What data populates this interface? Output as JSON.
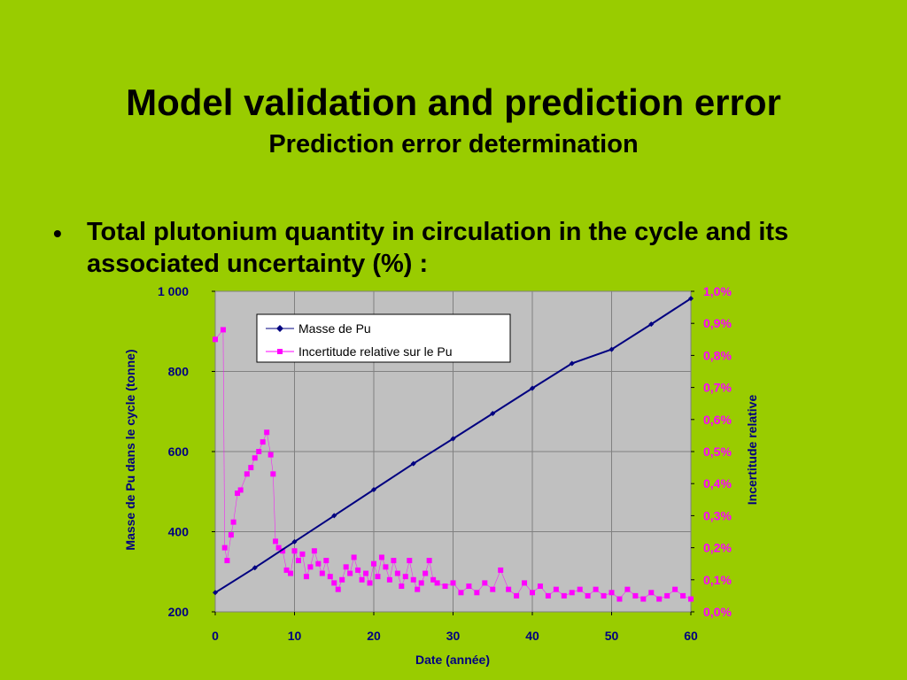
{
  "slide": {
    "title": "Model validation and prediction error",
    "subtitle": "Prediction error determination",
    "bullet_symbol": "•",
    "bullet": "Total plutonium quantity in circulation in the cycle and its associated  uncertainty (%) :"
  },
  "colors": {
    "background": "#99cc00",
    "plot_area": "#c0c0c0",
    "series_mass": "#000080",
    "series_uncertainty": "#ff00ff",
    "axis_left_text": "#000080",
    "axis_right_text": "#ff00ff"
  },
  "chart_data": {
    "type": "scatter",
    "xlabel": "Date (année)",
    "ylabel": "Masse de Pu dans le cycle (tonne)",
    "y2label": "Incertitude relative",
    "xlim": [
      0,
      60
    ],
    "ylim": [
      200,
      1000
    ],
    "y2lim": [
      0,
      1.0
    ],
    "x_ticks": [
      "0",
      "10",
      "20",
      "30",
      "40",
      "50",
      "60"
    ],
    "y_ticks": [
      "200",
      "400",
      "600",
      "800",
      "1 000"
    ],
    "y2_ticks": [
      "0,0%",
      "0,1%",
      "0,2%",
      "0,3%",
      "0,4%",
      "0,5%",
      "0,6%",
      "0,7%",
      "0,8%",
      "0,9%",
      "1,0%"
    ],
    "grid": true,
    "legend_position": "top-left",
    "series": [
      {
        "name": "Masse de Pu",
        "axis": "left",
        "marker": "diamond",
        "x": [
          0,
          5,
          10,
          15,
          20,
          25,
          30,
          35,
          40,
          45,
          50,
          55,
          60
        ],
        "y": [
          248,
          310,
          375,
          440,
          505,
          570,
          632,
          695,
          758,
          820,
          855,
          918,
          982
        ]
      },
      {
        "name": "Incertitude relative sur le Pu",
        "axis": "right",
        "marker": "square",
        "x": [
          0,
          1,
          1.2,
          1.5,
          2,
          2.3,
          2.8,
          3.2,
          4,
          4.5,
          5,
          5.5,
          6,
          6.5,
          7,
          7.3,
          7.6,
          8,
          8.5,
          9,
          9.5,
          10,
          10.5,
          11,
          11.5,
          12,
          12.5,
          13,
          13.5,
          14,
          14.5,
          15,
          15.5,
          16,
          16.5,
          17,
          17.5,
          18,
          18.5,
          19,
          19.5,
          20,
          20.5,
          21,
          21.5,
          22,
          22.5,
          23,
          23.5,
          24,
          24.5,
          25,
          25.5,
          26,
          26.5,
          27,
          27.5,
          28,
          29,
          30,
          31,
          32,
          33,
          34,
          35,
          36,
          37,
          38,
          39,
          40,
          41,
          42,
          43,
          44,
          45,
          46,
          47,
          48,
          49,
          50,
          51,
          52,
          53,
          54,
          55,
          56,
          57,
          58,
          59,
          60
        ],
        "y": [
          0.85,
          0.88,
          0.2,
          0.16,
          0.24,
          0.28,
          0.37,
          0.38,
          0.43,
          0.45,
          0.48,
          0.5,
          0.53,
          0.56,
          0.49,
          0.43,
          0.22,
          0.2,
          0.19,
          0.13,
          0.12,
          0.19,
          0.16,
          0.18,
          0.11,
          0.14,
          0.19,
          0.15,
          0.12,
          0.16,
          0.11,
          0.09,
          0.07,
          0.1,
          0.14,
          0.12,
          0.17,
          0.13,
          0.1,
          0.12,
          0.09,
          0.15,
          0.11,
          0.17,
          0.14,
          0.1,
          0.16,
          0.12,
          0.08,
          0.11,
          0.16,
          0.1,
          0.07,
          0.09,
          0.12,
          0.16,
          0.1,
          0.09,
          0.08,
          0.09,
          0.06,
          0.08,
          0.06,
          0.09,
          0.07,
          0.13,
          0.07,
          0.05,
          0.09,
          0.06,
          0.08,
          0.05,
          0.07,
          0.05,
          0.06,
          0.07,
          0.05,
          0.07,
          0.05,
          0.06,
          0.04,
          0.07,
          0.05,
          0.04,
          0.06,
          0.04,
          0.05,
          0.07,
          0.05,
          0.04
        ]
      }
    ]
  }
}
